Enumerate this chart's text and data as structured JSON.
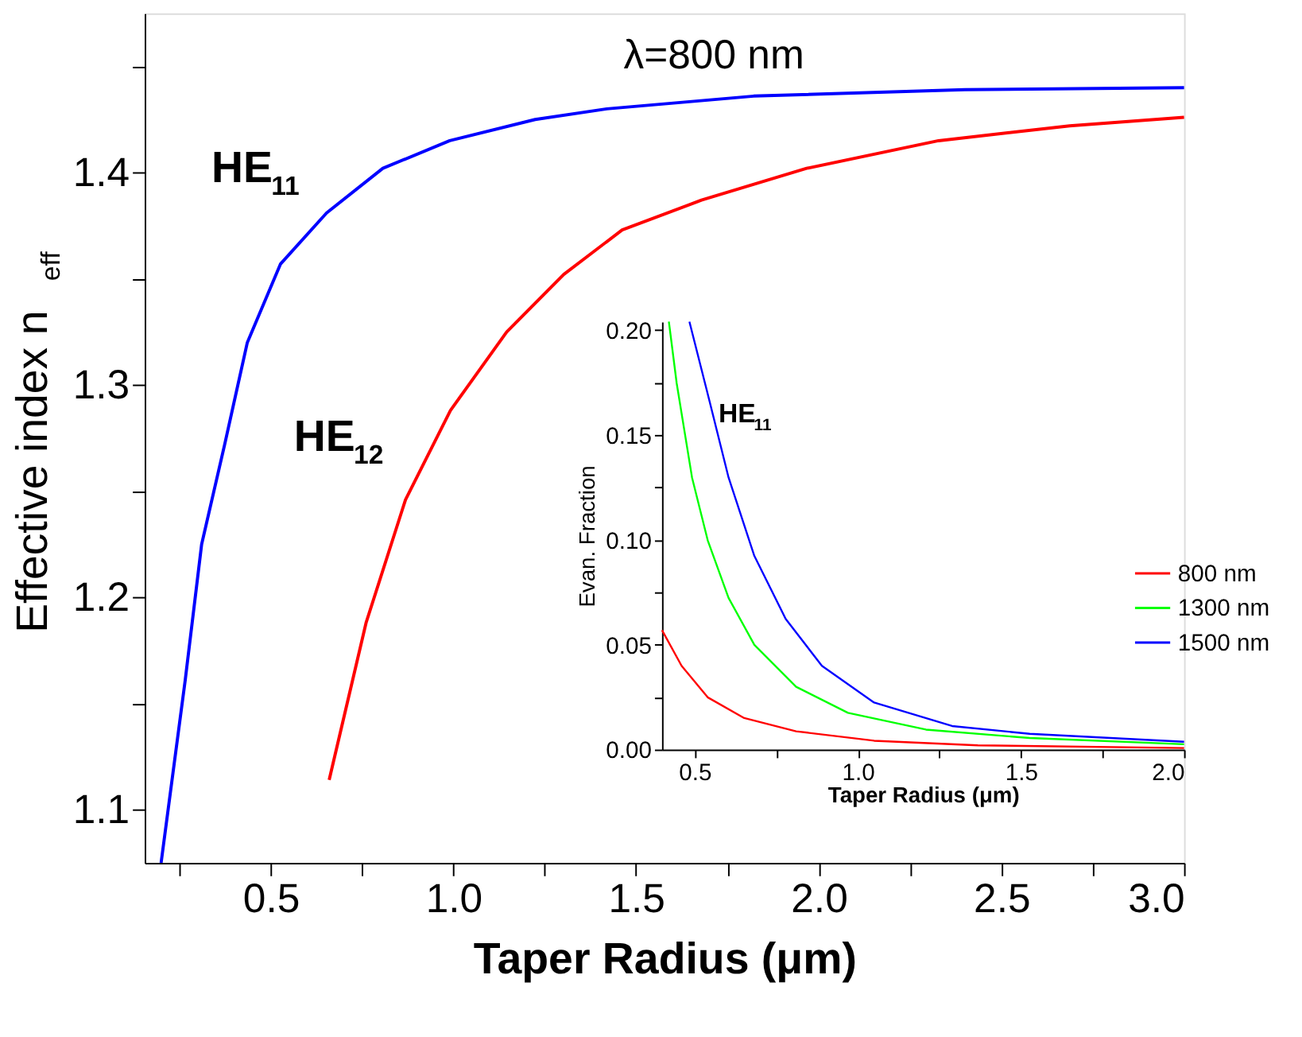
{
  "chart_data": [
    {
      "type": "line",
      "xlabel": "Taper Radius (μm)",
      "ylabel": "Effective index n$_{eff}$",
      "annotations": [
        "λ=800 nm"
      ],
      "xlim": [
        0.155,
        3.0
      ],
      "ylim": [
        1.075,
        1.475
      ],
      "xticks": [
        {
          "value": 0.25,
          "label": null
        },
        {
          "value": 0.5,
          "label": "0.5"
        },
        {
          "value": 0.75,
          "label": null
        },
        {
          "value": 1,
          "label": "1.0"
        },
        {
          "value": 1.25,
          "label": null
        },
        {
          "value": 1.5,
          "label": "1.5"
        },
        {
          "value": 1.75,
          "label": null
        },
        {
          "value": 2,
          "label": "2.0"
        },
        {
          "value": 2.25,
          "label": null
        },
        {
          "value": 2.5,
          "label": "2.5"
        },
        {
          "value": 2.75,
          "label": null
        },
        {
          "value": 3,
          "label": "3.0"
        }
      ],
      "yticks": [
        {
          "value": 1.1,
          "label": "1.1"
        },
        {
          "value": 1.15,
          "label": null
        },
        {
          "value": 1.2,
          "label": "1.2"
        },
        {
          "value": 1.25,
          "label": null
        },
        {
          "value": 1.3,
          "label": "1.3"
        },
        {
          "value": 1.35,
          "label": null
        },
        {
          "value": 1.4,
          "label": "1.4"
        },
        {
          "value": 1.45,
          "label": null
        }
      ],
      "marker": "none",
      "line_style": "solid",
      "series": [
        {
          "name": "HE$_{11}$",
          "color": "#0000ff",
          "x": [
            0.2,
            0.266,
            0.311,
            0.374,
            0.436,
            0.527,
            0.653,
            0.807,
            0.99,
            1.224,
            1.42,
            1.822,
            2.4,
            3.0
          ],
          "values": [
            1.075,
            1.161,
            1.225,
            1.272,
            1.32,
            1.357,
            1.381,
            1.402,
            1.415,
            1.425,
            1.43,
            1.436,
            1.439,
            1.44
          ]
        },
        {
          "name": "HE$_{12}$",
          "color": "#ff0000",
          "x": [
            0.66,
            0.761,
            0.869,
            0.992,
            1.146,
            1.302,
            1.462,
            1.679,
            1.967,
            2.328,
            2.687,
            3.0
          ],
          "values": [
            1.114,
            1.188,
            1.246,
            1.288,
            1.325,
            1.352,
            1.373,
            1.387,
            1.402,
            1.415,
            1.422,
            1.426
          ]
        }
      ]
    },
    {
      "type": "line",
      "xlabel": "Taper Radius (μm)",
      "ylabel": "Evan. Fraction",
      "annotations": [
        "HE$_{11}$"
      ],
      "xlim": [
        0.4,
        2.0
      ],
      "ylim": [
        0,
        0.204
      ],
      "xticks": [
        {
          "value": 0.5,
          "label": "0.5"
        },
        {
          "value": 0.75,
          "label": null
        },
        {
          "value": 1,
          "label": "1.0"
        },
        {
          "value": 1.25,
          "label": null
        },
        {
          "value": 1.5,
          "label": "1.5"
        },
        {
          "value": 1.75,
          "label": null
        },
        {
          "value": 2,
          "label": "2.0"
        }
      ],
      "yticks": [
        {
          "value": 0,
          "label": "0.00"
        },
        {
          "value": 0.025,
          "label": null
        },
        {
          "value": 0.05,
          "label": "0.05"
        },
        {
          "value": 0.075,
          "label": null
        },
        {
          "value": 0.1,
          "label": "0.10"
        },
        {
          "value": 0.125,
          "label": null
        },
        {
          "value": 0.15,
          "label": "0.15"
        },
        {
          "value": 0.175,
          "label": null
        },
        {
          "value": 0.2,
          "label": "0.20"
        }
      ],
      "legend": "right",
      "marker": "none",
      "line_style": "solid",
      "series": [
        {
          "name": "800 nm",
          "color": "#ff0000",
          "x": [
            0.4,
            0.46,
            0.54,
            0.652,
            0.811,
            1.05,
            1.368,
            2.0
          ],
          "values": [
            0.0569,
            0.0399,
            0.0249,
            0.015,
            0.0087,
            0.0042,
            0.002,
            0.0007
          ]
        },
        {
          "name": "1300 nm",
          "color": "#00ff00",
          "x": [
            0.421,
            0.445,
            0.492,
            0.54,
            0.604,
            0.683,
            0.811,
            0.97,
            1.209,
            1.527,
            2.0
          ],
          "values": [
            0.204,
            0.1746,
            0.1297,
            0.0998,
            0.0723,
            0.0499,
            0.0299,
            0.0175,
            0.0095,
            0.0055,
            0.0025
          ]
        },
        {
          "name": "1500 nm",
          "color": "#0000ff",
          "x": [
            0.484,
            0.54,
            0.604,
            0.683,
            0.779,
            0.89,
            1.05,
            1.289,
            1.527,
            2.0
          ],
          "values": [
            0.204,
            0.1696,
            0.1297,
            0.0923,
            0.0623,
            0.0399,
            0.0224,
            0.0112,
            0.0075,
            0.0037
          ]
        }
      ]
    }
  ]
}
